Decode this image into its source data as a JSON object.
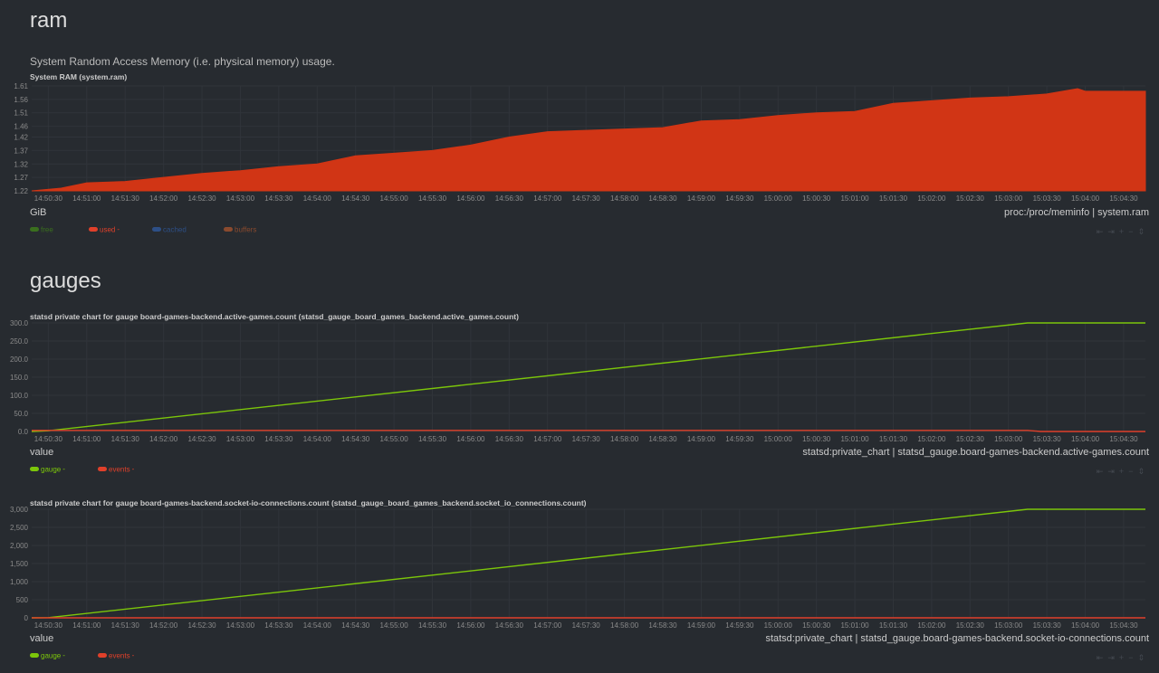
{
  "ram": {
    "section_title": "ram",
    "description": "System Random Access Memory (i.e. physical memory) usage.",
    "chart_title": "System RAM (system.ram)",
    "units": "GiB",
    "source": "proc:/proc/meminfo | system.ram",
    "legend": [
      {
        "name": "free",
        "value": "",
        "color": "#3a6f1e"
      },
      {
        "name": "used",
        "value": "-",
        "color": "#e0402a"
      },
      {
        "name": "cached",
        "value": "",
        "color": "#2d4f86"
      },
      {
        "name": "buffers",
        "value": "",
        "color": "#8a4a2e"
      }
    ]
  },
  "gauges": {
    "section_title": "gauges",
    "chart1": {
      "chart_title": "statsd private chart for gauge board-games-backend.active-games.count (statsd_gauge_board_games_backend.active_games.count)",
      "units": "value",
      "source": "statsd:private_chart | statsd_gauge.board-games-backend.active-games.count",
      "legend": [
        {
          "name": "gauge",
          "value": "-",
          "color": "#7cc60a"
        },
        {
          "name": "events",
          "value": "-",
          "color": "#e0402a"
        }
      ]
    },
    "chart2": {
      "chart_title": "statsd private chart for gauge board-games-backend.socket-io-connections.count (statsd_gauge_board_games_backend.socket_io_connections.count)",
      "units": "value",
      "source": "statsd:private_chart | statsd_gauge.board-games-backend.socket-io-connections.count",
      "legend": [
        {
          "name": "gauge",
          "value": "-",
          "color": "#7cc60a"
        },
        {
          "name": "events",
          "value": "-",
          "color": "#e0402a"
        }
      ]
    }
  },
  "toolbox": {
    "left": "⇤",
    "right": "⇥",
    "zoom_in": "+",
    "zoom_out": "−",
    "resize": "⇕"
  },
  "chart_data": [
    {
      "type": "area",
      "title": "System RAM (system.ram)",
      "ylabel": "GiB",
      "ylim": [
        1.22,
        1.61
      ],
      "yticks": [
        "1.61",
        "1.56",
        "1.51",
        "1.46",
        "1.42",
        "1.37",
        "1.32",
        "1.27",
        "1.22"
      ],
      "xticks": [
        "14:50:30",
        "14:51:00",
        "14:51:30",
        "14:52:00",
        "14:52:30",
        "14:53:00",
        "14:53:30",
        "14:54:00",
        "14:54:30",
        "14:55:00",
        "14:55:30",
        "14:56:00",
        "14:56:30",
        "14:57:00",
        "14:57:30",
        "14:58:00",
        "14:58:30",
        "14:59:00",
        "14:59:30",
        "15:00:00",
        "15:00:30",
        "15:01:00",
        "15:01:30",
        "15:02:00",
        "15:02:30",
        "15:03:00",
        "15:03:30",
        "15:04:00",
        "15:04:30"
      ],
      "grid": true,
      "x_start": "14:50:17",
      "x_end": "15:04:47",
      "series": [
        {
          "name": "used",
          "color": "#d13515",
          "points": [
            [
              "14:50:17",
              1.22
            ],
            [
              "14:50:40",
              1.23
            ],
            [
              "14:51:00",
              1.25
            ],
            [
              "14:51:30",
              1.255
            ],
            [
              "14:52:00",
              1.27
            ],
            [
              "14:52:30",
              1.285
            ],
            [
              "14:53:00",
              1.295
            ],
            [
              "14:53:30",
              1.31
            ],
            [
              "14:54:00",
              1.32
            ],
            [
              "14:54:30",
              1.35
            ],
            [
              "14:55:00",
              1.36
            ],
            [
              "14:55:30",
              1.37
            ],
            [
              "14:56:00",
              1.39
            ],
            [
              "14:56:30",
              1.42
            ],
            [
              "14:57:00",
              1.44
            ],
            [
              "14:57:30",
              1.445
            ],
            [
              "14:58:00",
              1.45
            ],
            [
              "14:58:30",
              1.455
            ],
            [
              "14:59:00",
              1.48
            ],
            [
              "14:59:30",
              1.485
            ],
            [
              "15:00:00",
              1.5
            ],
            [
              "15:00:30",
              1.51
            ],
            [
              "15:01:00",
              1.515
            ],
            [
              "15:01:30",
              1.545
            ],
            [
              "15:02:00",
              1.555
            ],
            [
              "15:02:30",
              1.565
            ],
            [
              "15:03:00",
              1.57
            ],
            [
              "15:03:30",
              1.58
            ],
            [
              "15:03:54",
              1.6
            ],
            [
              "15:04:00",
              1.59
            ],
            [
              "15:04:30",
              1.59
            ],
            [
              "15:04:47",
              1.59
            ]
          ]
        }
      ]
    },
    {
      "type": "line",
      "title": "statsd private chart for gauge board-games-backend.active-games.count (statsd_gauge_board_games_backend.active_games.count)",
      "ylabel": "value",
      "ylim": [
        0,
        300
      ],
      "yticks": [
        "300.0",
        "250.0",
        "200.0",
        "150.0",
        "100.0",
        "50.0",
        "0.0"
      ],
      "xticks": [
        "14:50:30",
        "14:51:00",
        "14:51:30",
        "14:52:00",
        "14:52:30",
        "14:53:00",
        "14:53:30",
        "14:54:00",
        "14:54:30",
        "14:55:00",
        "14:55:30",
        "14:56:00",
        "14:56:30",
        "14:57:00",
        "14:57:30",
        "14:58:00",
        "14:58:30",
        "14:59:00",
        "14:59:30",
        "15:00:00",
        "15:00:30",
        "15:01:00",
        "15:01:30",
        "15:02:00",
        "15:02:30",
        "15:03:00",
        "15:03:30",
        "15:04:00",
        "15:04:30"
      ],
      "grid": true,
      "x_start": "14:50:17",
      "x_end": "15:04:47",
      "series": [
        {
          "name": "gauge",
          "color": "#7cc60a",
          "points": [
            [
              "14:50:17",
              0
            ],
            [
              "14:50:30",
              2
            ],
            [
              "15:03:15",
              300
            ],
            [
              "15:04:47",
              300
            ]
          ]
        },
        {
          "name": "events",
          "color": "#e0402a",
          "points": [
            [
              "14:50:17",
              3
            ],
            [
              "15:03:15",
              3
            ],
            [
              "15:03:25",
              0
            ],
            [
              "15:04:47",
              0
            ]
          ]
        }
      ]
    },
    {
      "type": "line",
      "title": "statsd private chart for gauge board-games-backend.socket-io-connections.count (statsd_gauge_board_games_backend.socket_io_connections.count)",
      "ylabel": "value",
      "ylim": [
        0,
        3000
      ],
      "yticks": [
        "3,000",
        "2,500",
        "2,000",
        "1,500",
        "1,000",
        "500",
        "0"
      ],
      "xticks": [
        "14:50:30",
        "14:51:00",
        "14:51:30",
        "14:52:00",
        "14:52:30",
        "14:53:00",
        "14:53:30",
        "14:54:00",
        "14:54:30",
        "14:55:00",
        "14:55:30",
        "14:56:00",
        "14:56:30",
        "14:57:00",
        "14:57:30",
        "14:58:00",
        "14:58:30",
        "14:59:00",
        "14:59:30",
        "15:00:00",
        "15:00:30",
        "15:01:00",
        "15:01:30",
        "15:02:00",
        "15:02:30",
        "15:03:00",
        "15:03:30",
        "15:04:00",
        "15:04:30"
      ],
      "grid": true,
      "x_start": "14:50:17",
      "x_end": "15:04:47",
      "series": [
        {
          "name": "gauge",
          "color": "#7cc60a",
          "points": [
            [
              "14:50:17",
              0
            ],
            [
              "14:50:30",
              5
            ],
            [
              "15:03:15",
              3000
            ],
            [
              "15:04:47",
              3000
            ]
          ]
        },
        {
          "name": "events",
          "color": "#e0402a",
          "points": [
            [
              "14:50:17",
              0
            ],
            [
              "15:04:47",
              0
            ]
          ]
        }
      ]
    }
  ]
}
